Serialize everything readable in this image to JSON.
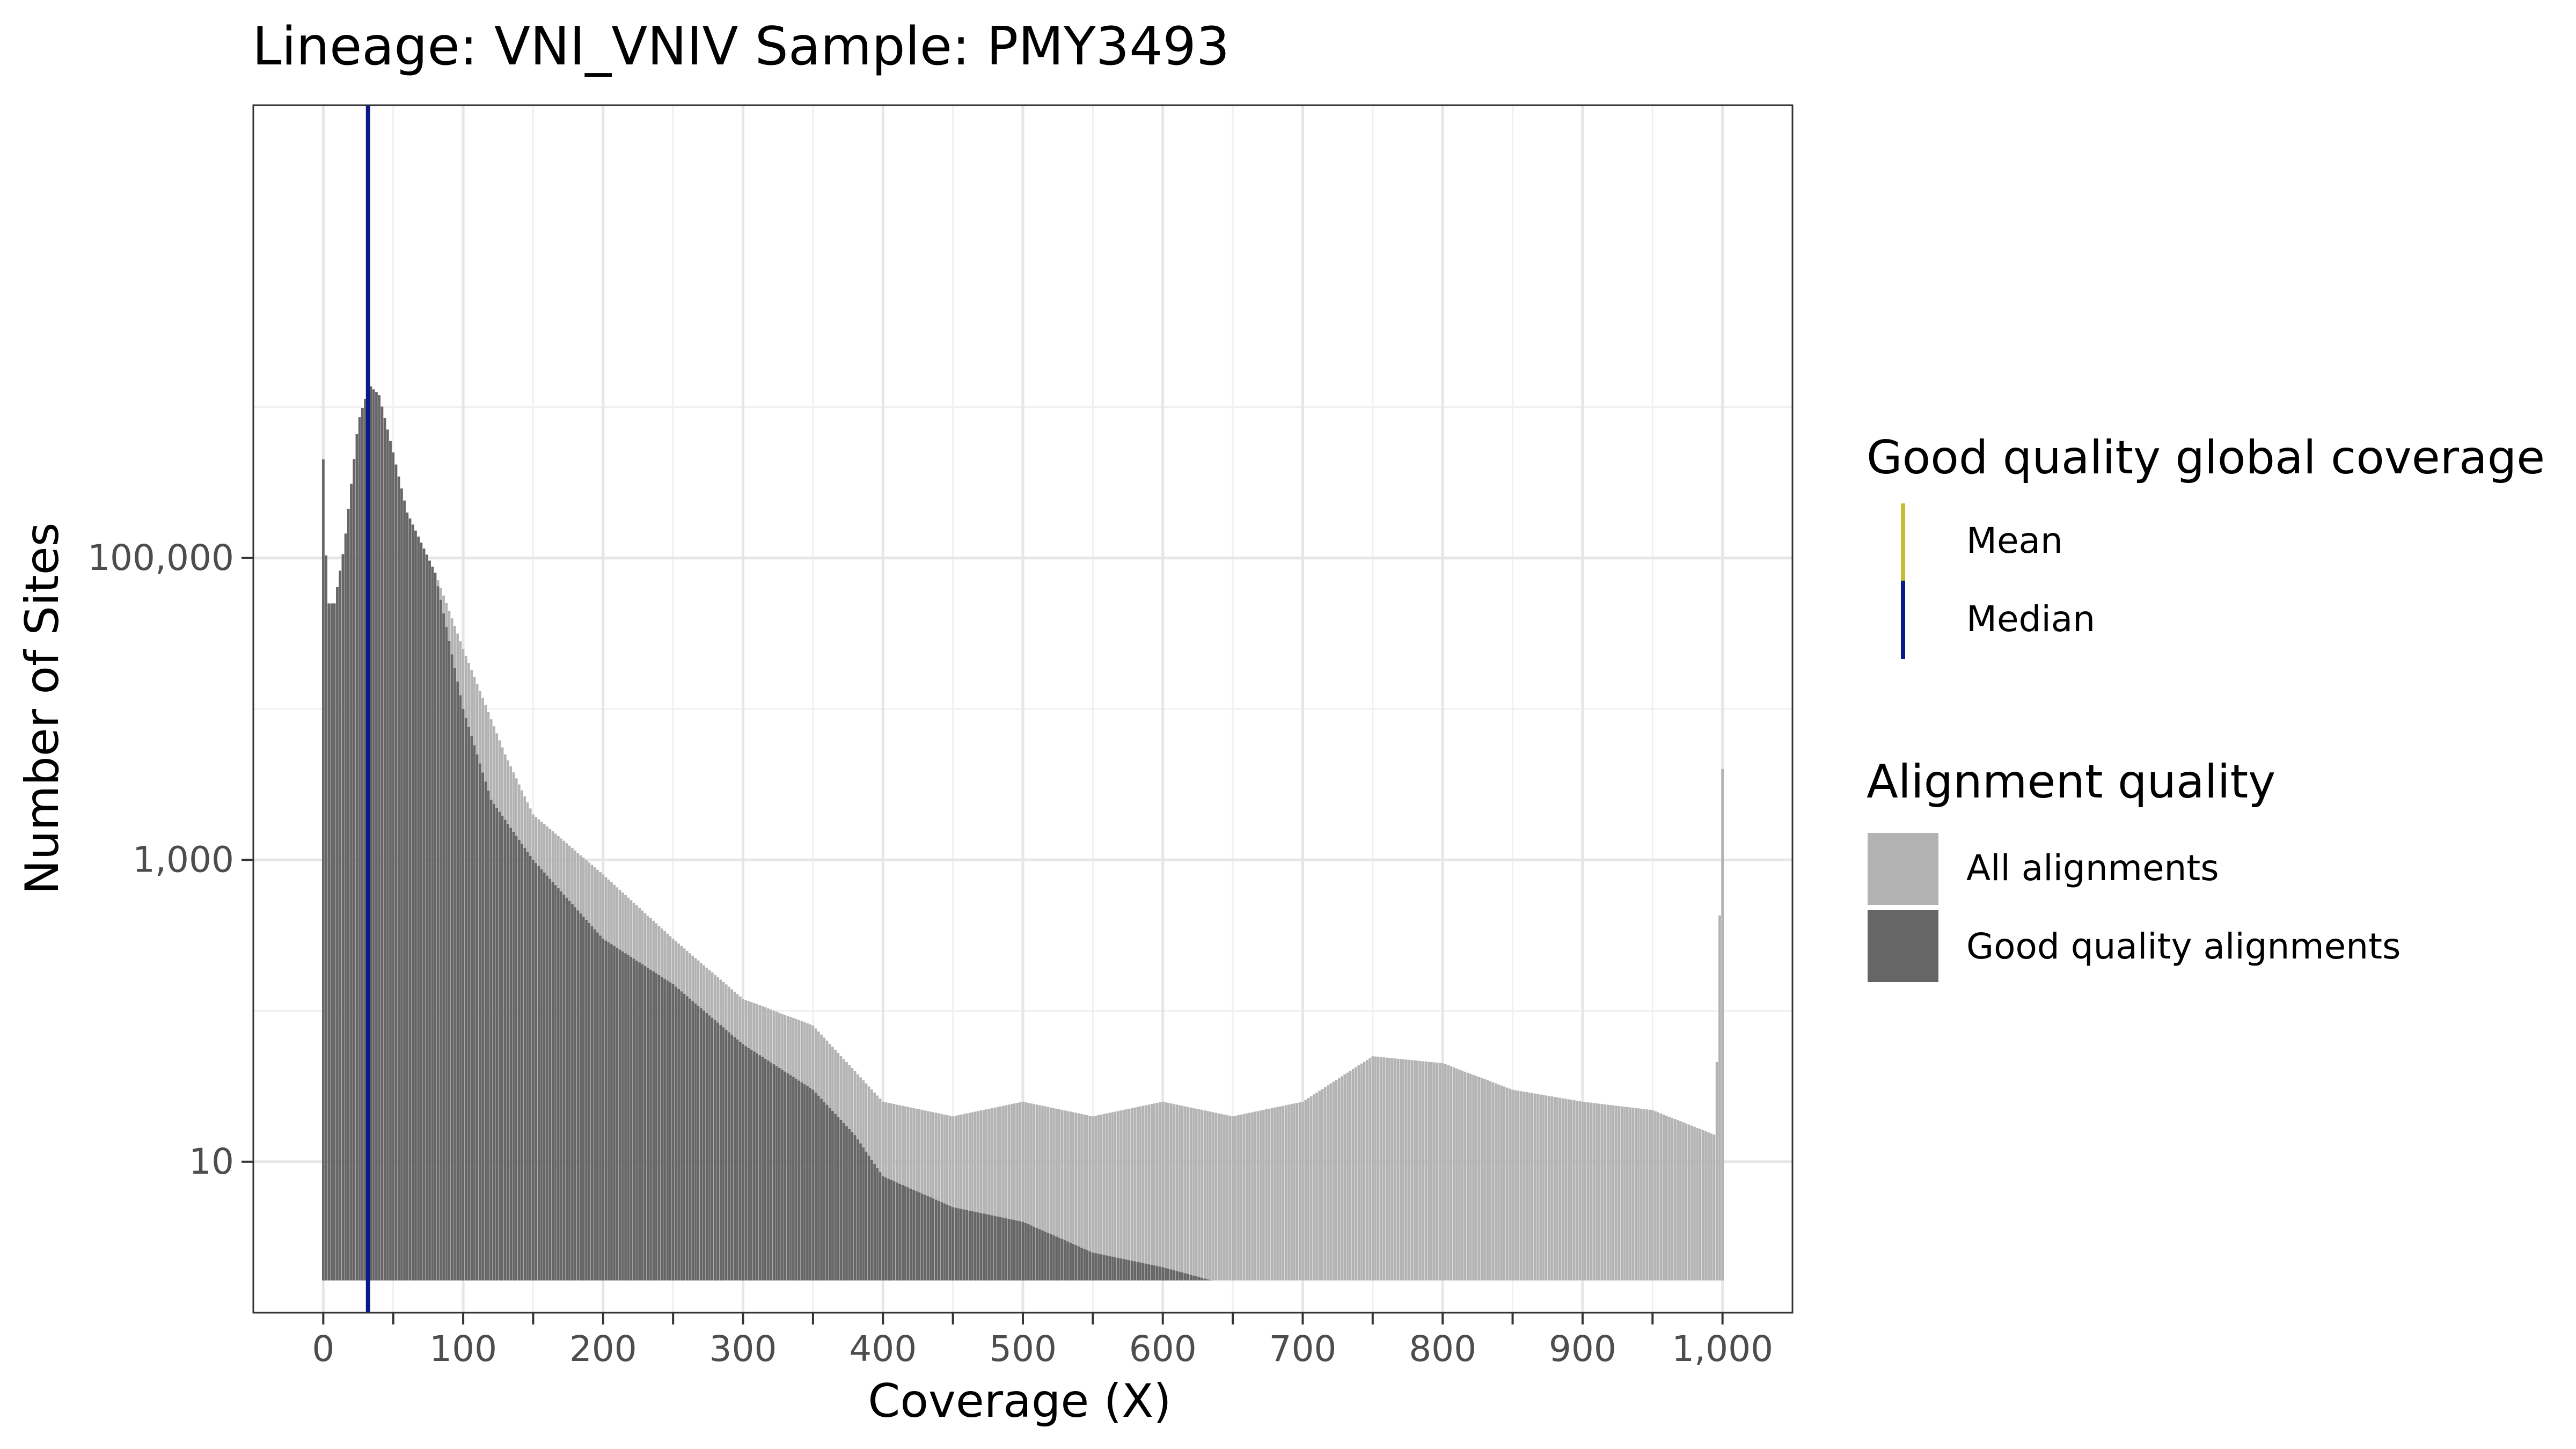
{
  "chart_data": {
    "type": "bar",
    "title": "Lineage: VNI_VNIV  Sample: PMY3493",
    "xlabel": "Coverage (X)",
    "ylabel": "Number of Sites",
    "x_scale": "linear",
    "y_scale": "log10",
    "xlim": [
      -50,
      1050
    ],
    "ylim": [
      1,
      100000000
    ],
    "x_ticks": [
      0,
      100,
      200,
      300,
      400,
      500,
      600,
      700,
      800,
      900,
      1000
    ],
    "x_tick_labels": [
      "0",
      "100",
      "200",
      "300",
      "400",
      "500",
      "600",
      "700",
      "800",
      "900",
      "1,000"
    ],
    "y_ticks": [
      10,
      1000,
      100000
    ],
    "y_tick_labels": [
      "10",
      "1,000",
      "100,000"
    ],
    "grid": true,
    "legend_position": "right",
    "series": [
      {
        "name": "All alignments",
        "color": "#b3b3b3",
        "points": [
          [
            0,
            450000
          ],
          [
            3,
            50000
          ],
          [
            8,
            50000
          ],
          [
            15,
            120000
          ],
          [
            25,
            800000
          ],
          [
            33,
            1400000
          ],
          [
            40,
            1200000
          ],
          [
            50,
            500000
          ],
          [
            60,
            200000
          ],
          [
            80,
            80000
          ],
          [
            100,
            25000
          ],
          [
            130,
            5000
          ],
          [
            150,
            2000
          ],
          [
            200,
            800
          ],
          [
            250,
            300
          ],
          [
            300,
            120
          ],
          [
            350,
            80
          ],
          [
            400,
            25
          ],
          [
            450,
            20
          ],
          [
            500,
            25
          ],
          [
            550,
            20
          ],
          [
            600,
            25
          ],
          [
            650,
            20
          ],
          [
            700,
            25
          ],
          [
            750,
            50
          ],
          [
            800,
            45
          ],
          [
            850,
            30
          ],
          [
            900,
            25
          ],
          [
            950,
            22
          ],
          [
            995,
            15
          ],
          [
            1000,
            4000
          ]
        ]
      },
      {
        "name": "Good quality alignments",
        "color": "#666666",
        "points": [
          [
            0,
            450000
          ],
          [
            3,
            50000
          ],
          [
            8,
            50000
          ],
          [
            15,
            120000
          ],
          [
            25,
            800000
          ],
          [
            33,
            1400000
          ],
          [
            40,
            1200000
          ],
          [
            50,
            500000
          ],
          [
            60,
            200000
          ],
          [
            80,
            80000
          ],
          [
            100,
            10000
          ],
          [
            120,
            2500
          ],
          [
            150,
            1000
          ],
          [
            200,
            300
          ],
          [
            250,
            150
          ],
          [
            300,
            60
          ],
          [
            350,
            30
          ],
          [
            380,
            15
          ],
          [
            400,
            8
          ],
          [
            450,
            5
          ],
          [
            500,
            4
          ],
          [
            550,
            2.5
          ],
          [
            600,
            2
          ],
          [
            650,
            1.5
          ],
          [
            680,
            1.5
          ]
        ]
      }
    ],
    "reference_lines": [
      {
        "name": "Mean",
        "x": 32,
        "color": "#c8bd2e"
      },
      {
        "name": "Median",
        "x": 32,
        "color": "#0a1a8c"
      }
    ],
    "legends": [
      {
        "title": "Good quality global coverage",
        "items": [
          {
            "label": "Mean",
            "color": "#c8bd2e"
          },
          {
            "label": "Median",
            "color": "#0a1a8c"
          }
        ]
      },
      {
        "title": "Alignment quality",
        "items": [
          {
            "label": "All alignments",
            "color": "#b3b3b3"
          },
          {
            "label": "Good quality alignments",
            "color": "#666666"
          }
        ]
      }
    ]
  }
}
